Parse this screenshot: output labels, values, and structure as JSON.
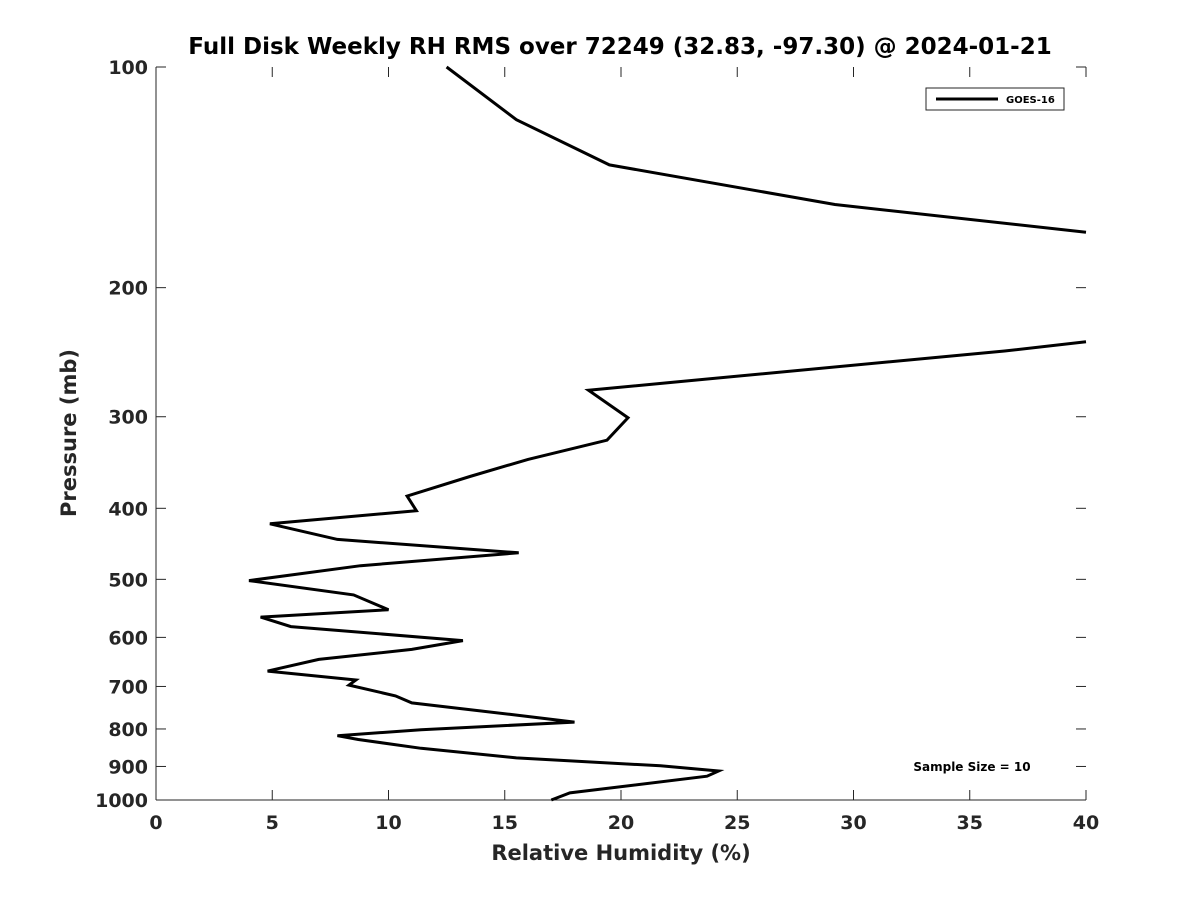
{
  "chart_data": {
    "type": "line",
    "title": "Full Disk Weekly RH RMS over 72249 (32.83, -97.30) @ 2024-01-21",
    "xlabel": "Relative Humidity (%)",
    "ylabel": "Pressure (mb)",
    "xlim": [
      0,
      40
    ],
    "ylim": [
      1000,
      100
    ],
    "yscale": "log",
    "y_reversed": true,
    "grid": false,
    "legend_placement": "top-right",
    "x_ticks": [
      "0",
      "5",
      "10",
      "15",
      "20",
      "25",
      "30",
      "35",
      "40"
    ],
    "y_ticks": [
      "100",
      "200",
      "300",
      "400",
      "500",
      "600",
      "700",
      "800",
      "900",
      "1000"
    ],
    "line_color": "#000000",
    "series": [
      {
        "name": "GOES-16",
        "points": [
          [
            12.5,
            100
          ],
          [
            15.5,
            118
          ],
          [
            19.5,
            136
          ],
          [
            29.2,
            154
          ],
          [
            40.0,
            168
          ],
          [
            40.0,
            237
          ],
          [
            36.5,
            244
          ],
          [
            18.6,
            276
          ],
          [
            20.3,
            301
          ],
          [
            19.4,
            323
          ],
          [
            16.0,
            343
          ],
          [
            13.5,
            362
          ],
          [
            10.8,
            385
          ],
          [
            11.2,
            403
          ],
          [
            4.9,
            420
          ],
          [
            7.8,
            441
          ],
          [
            15.6,
            460
          ],
          [
            8.8,
            479
          ],
          [
            4.0,
            502
          ],
          [
            8.5,
            525
          ],
          [
            10.0,
            550
          ],
          [
            4.5,
            563
          ],
          [
            5.8,
            580
          ],
          [
            13.2,
            606
          ],
          [
            11.0,
            623
          ],
          [
            7.0,
            643
          ],
          [
            4.8,
            667
          ],
          [
            8.6,
            686
          ],
          [
            8.3,
            697
          ],
          [
            10.3,
            721
          ],
          [
            11.0,
            737
          ],
          [
            15.2,
            764
          ],
          [
            18.0,
            783
          ],
          [
            11.4,
            802
          ],
          [
            7.8,
            817
          ],
          [
            8.7,
            827
          ],
          [
            11.4,
            850
          ],
          [
            15.5,
            876
          ],
          [
            21.7,
            898
          ],
          [
            24.2,
            913
          ],
          [
            23.7,
            928
          ],
          [
            17.8,
            978
          ],
          [
            17.0,
            1000
          ]
        ]
      }
    ],
    "annotations": [
      "Sample Size = 10"
    ]
  }
}
